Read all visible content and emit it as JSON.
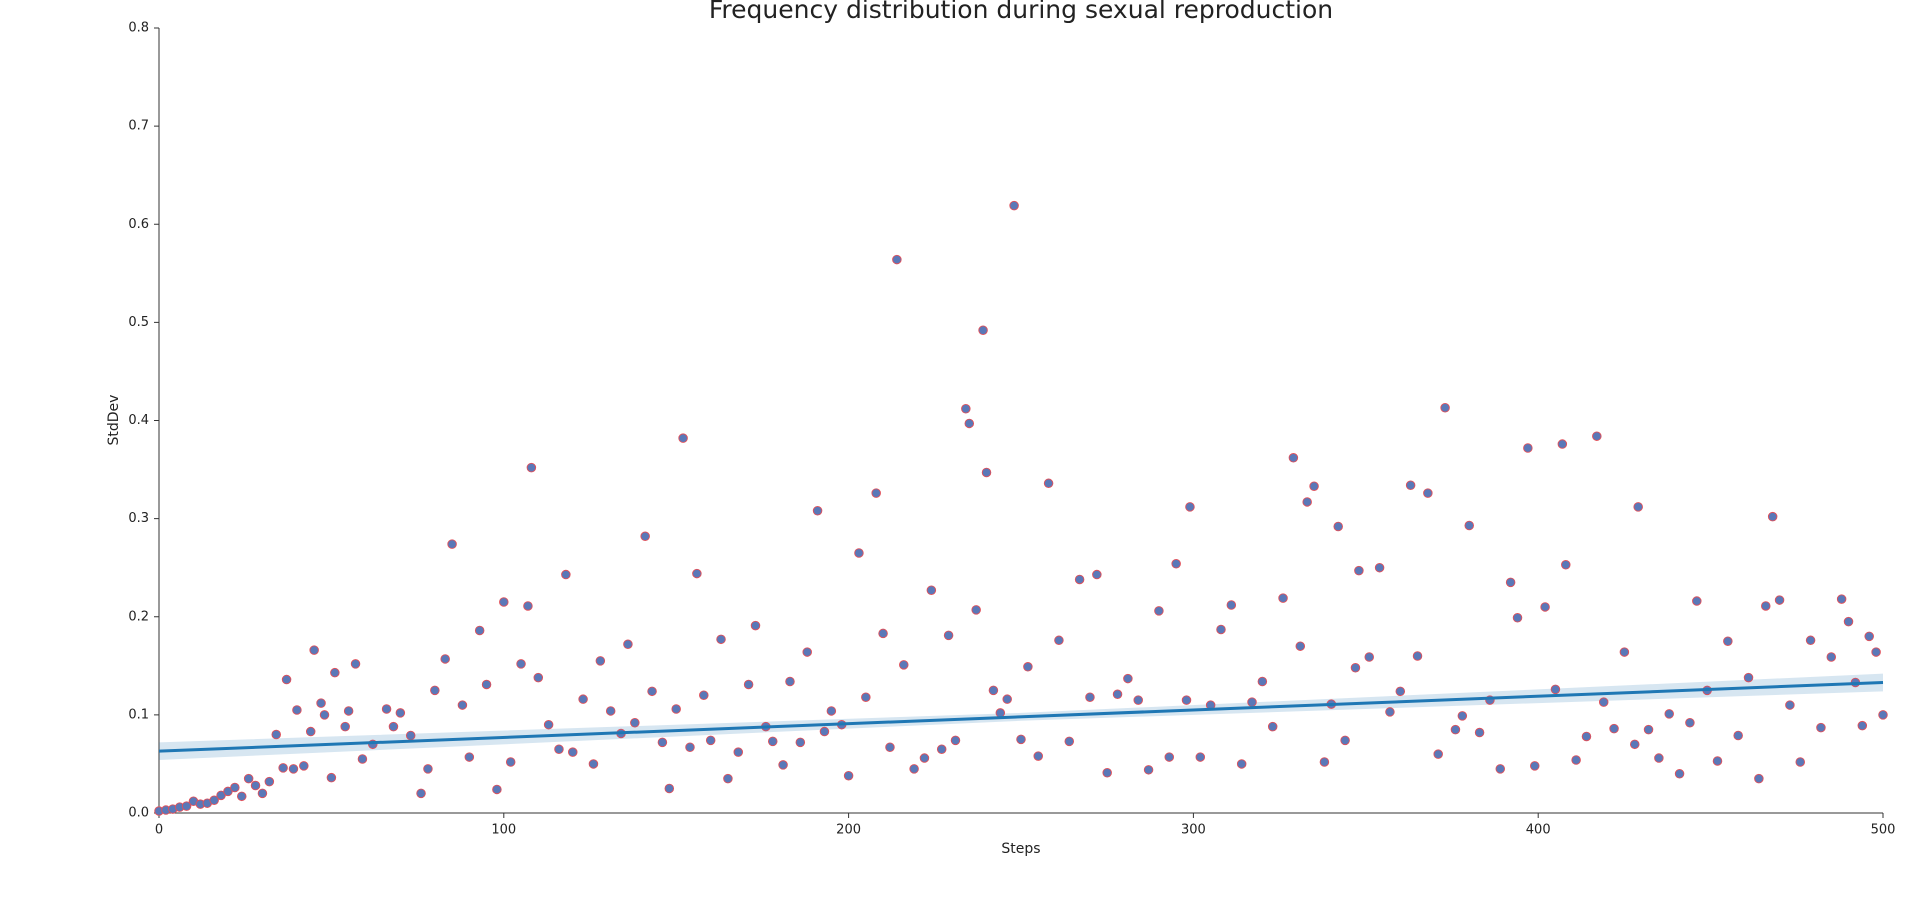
{
  "chart_data": {
    "type": "scatter",
    "title": "Frequency distribution during sexual reproduction",
    "x_label": "Steps",
    "y_label": "StdDev",
    "xlim": [
      0,
      500
    ],
    "ylim": [
      0,
      0.8
    ],
    "xticks": [
      0,
      100,
      200,
      300,
      400,
      500
    ],
    "yticks": [
      {
        "value": 0,
        "label": "0.0"
      },
      0.1,
      0.2,
      0.3,
      0.4,
      0.5,
      0.6,
      0.7,
      0.8
    ],
    "grid": false,
    "series": [
      {
        "color": "#5a78b8",
        "edge_color": "#e0505a",
        "x": [
          0,
          2,
          4,
          6,
          8,
          10,
          12,
          14,
          16,
          18,
          20,
          22,
          24,
          26,
          28,
          30,
          32,
          34,
          36,
          37,
          39,
          40,
          42,
          44,
          45,
          47,
          48,
          50,
          51,
          54,
          55,
          57,
          59,
          62,
          66,
          68,
          70,
          73,
          76,
          78,
          80,
          83,
          85,
          88,
          90,
          93,
          95,
          98,
          100,
          102,
          105,
          107,
          108,
          110,
          113,
          116,
          118,
          120,
          123,
          126,
          128,
          131,
          134,
          136,
          138,
          141,
          143,
          146,
          148,
          150,
          152,
          154,
          156,
          158,
          160,
          163,
          165,
          168,
          171,
          173,
          176,
          178,
          181,
          183,
          186,
          188,
          191,
          193,
          195,
          198,
          200,
          203,
          205,
          208,
          210,
          212,
          214,
          216,
          219,
          222,
          224,
          227,
          229,
          231,
          234,
          235,
          237,
          239,
          240,
          242,
          244,
          246,
          248,
          250,
          252,
          255,
          258,
          261,
          264,
          267,
          270,
          272,
          275,
          278,
          281,
          284,
          287,
          290,
          293,
          295,
          298,
          299,
          302,
          305,
          308,
          311,
          314,
          317,
          320,
          323,
          326,
          329,
          331,
          333,
          335,
          338,
          340,
          342,
          344,
          347,
          348,
          351,
          354,
          357,
          360,
          363,
          365,
          368,
          371,
          373,
          376,
          378,
          380,
          383,
          386,
          389,
          392,
          394,
          397,
          399,
          402,
          405,
          407,
          408,
          411,
          414,
          417,
          419,
          422,
          425,
          428,
          429,
          432,
          435,
          438,
          441,
          444,
          446,
          449,
          452,
          455,
          458,
          461,
          464,
          466,
          468,
          470,
          473,
          476,
          479,
          482,
          485,
          488,
          490,
          492,
          494,
          496,
          498,
          500
        ],
        "values": [
          0.002,
          0.003,
          0.004,
          0.006,
          0.007,
          0.012,
          0.009,
          0.01,
          0.013,
          0.018,
          0.022,
          0.026,
          0.017,
          0.035,
          0.028,
          0.02,
          0.032,
          0.08,
          0.046,
          0.136,
          0.045,
          0.105,
          0.048,
          0.083,
          0.166,
          0.112,
          0.1,
          0.036,
          0.143,
          0.088,
          0.104,
          0.152,
          0.055,
          0.07,
          0.106,
          0.088,
          0.102,
          0.079,
          0.02,
          0.045,
          0.125,
          0.157,
          0.274,
          0.11,
          0.057,
          0.186,
          0.131,
          0.024,
          0.215,
          0.052,
          0.152,
          0.211,
          0.352,
          0.138,
          0.09,
          0.065,
          0.243,
          0.062,
          0.116,
          0.05,
          0.155,
          0.104,
          0.081,
          0.172,
          0.092,
          0.282,
          0.124,
          0.072,
          0.025,
          0.106,
          0.382,
          0.067,
          0.244,
          0.12,
          0.074,
          0.177,
          0.035,
          0.062,
          0.131,
          0.191,
          0.088,
          0.073,
          0.049,
          0.134,
          0.072,
          0.164,
          0.308,
          0.083,
          0.104,
          0.09,
          0.038,
          0.265,
          0.118,
          0.326,
          0.183,
          0.067,
          0.564,
          0.151,
          0.045,
          0.056,
          0.227,
          0.065,
          0.181,
          0.074,
          0.412,
          0.397,
          0.207,
          0.492,
          0.347,
          0.125,
          0.102,
          0.116,
          0.619,
          0.075,
          0.149,
          0.058,
          0.336,
          0.176,
          0.073,
          0.238,
          0.118,
          0.243,
          0.041,
          0.121,
          0.137,
          0.115,
          0.044,
          0.206,
          0.057,
          0.254,
          0.115,
          0.312,
          0.057,
          0.11,
          0.187,
          0.212,
          0.05,
          0.113,
          0.134,
          0.088,
          0.219,
          0.362,
          0.17,
          0.317,
          0.333,
          0.052,
          0.111,
          0.292,
          0.074,
          0.148,
          0.247,
          0.159,
          0.25,
          0.103,
          0.124,
          0.334,
          0.16,
          0.326,
          0.06,
          0.413,
          0.085,
          0.099,
          0.293,
          0.082,
          0.115,
          0.045,
          0.235,
          0.199,
          0.372,
          0.048,
          0.21,
          0.126,
          0.376,
          0.253,
          0.054,
          0.078,
          0.384,
          0.113,
          0.086,
          0.164,
          0.07,
          0.312,
          0.085,
          0.056,
          0.101,
          0.04,
          0.092,
          0.216,
          0.125,
          0.053,
          0.175,
          0.079,
          0.138,
          0.035,
          0.211,
          0.302,
          0.217,
          0.11,
          0.052,
          0.176,
          0.087,
          0.159,
          0.218,
          0.195,
          0.133,
          0.089,
          0.18,
          0.164,
          0.1
        ]
      }
    ],
    "regression": {
      "color": "#1f77b4",
      "band_color": "#1f77b4",
      "x": [
        0,
        500
      ],
      "values": [
        0.063,
        0.133
      ],
      "band_x": [
        0,
        250,
        500
      ],
      "band_lower": [
        0.054,
        0.094,
        0.124
      ],
      "band_upper": [
        0.072,
        0.102,
        0.142
      ]
    }
  }
}
